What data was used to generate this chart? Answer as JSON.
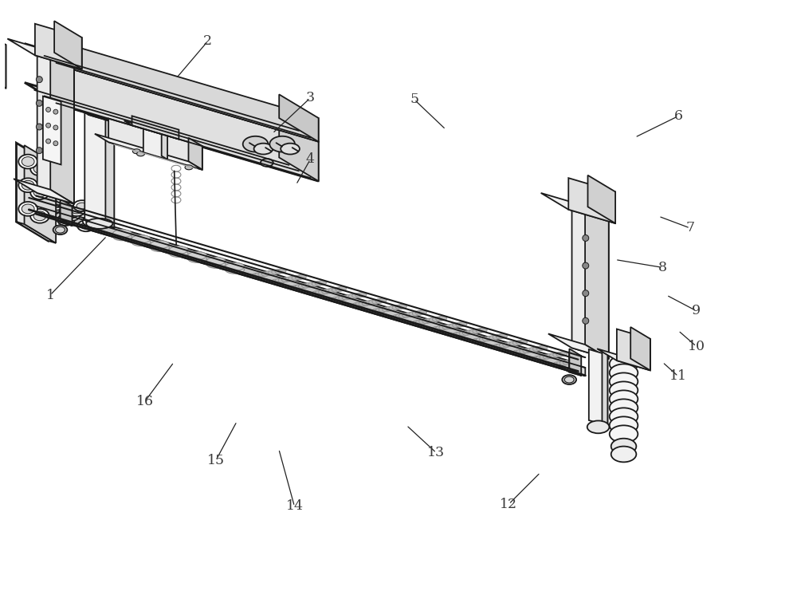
{
  "background_color": "#ffffff",
  "line_color": "#1a1a1a",
  "label_color": "#3a3a3a",
  "label_fontsize": 12.5,
  "ref_lines": [
    [
      "1",
      58,
      370,
      130,
      295
    ],
    [
      "2",
      258,
      48,
      218,
      95
    ],
    [
      "3",
      388,
      120,
      340,
      165
    ],
    [
      "4",
      388,
      198,
      370,
      230
    ],
    [
      "5",
      520,
      122,
      560,
      160
    ],
    [
      "6",
      855,
      143,
      800,
      170
    ],
    [
      "7",
      870,
      285,
      830,
      270
    ],
    [
      "8",
      835,
      335,
      775,
      325
    ],
    [
      "9",
      878,
      390,
      840,
      370
    ],
    [
      "10",
      878,
      435,
      855,
      415
    ],
    [
      "11",
      855,
      473,
      835,
      455
    ],
    [
      "12",
      640,
      635,
      680,
      595
    ],
    [
      "13",
      548,
      570,
      510,
      535
    ],
    [
      "14",
      368,
      638,
      348,
      565
    ],
    [
      "15",
      268,
      580,
      295,
      530
    ],
    [
      "16",
      178,
      505,
      215,
      455
    ]
  ]
}
